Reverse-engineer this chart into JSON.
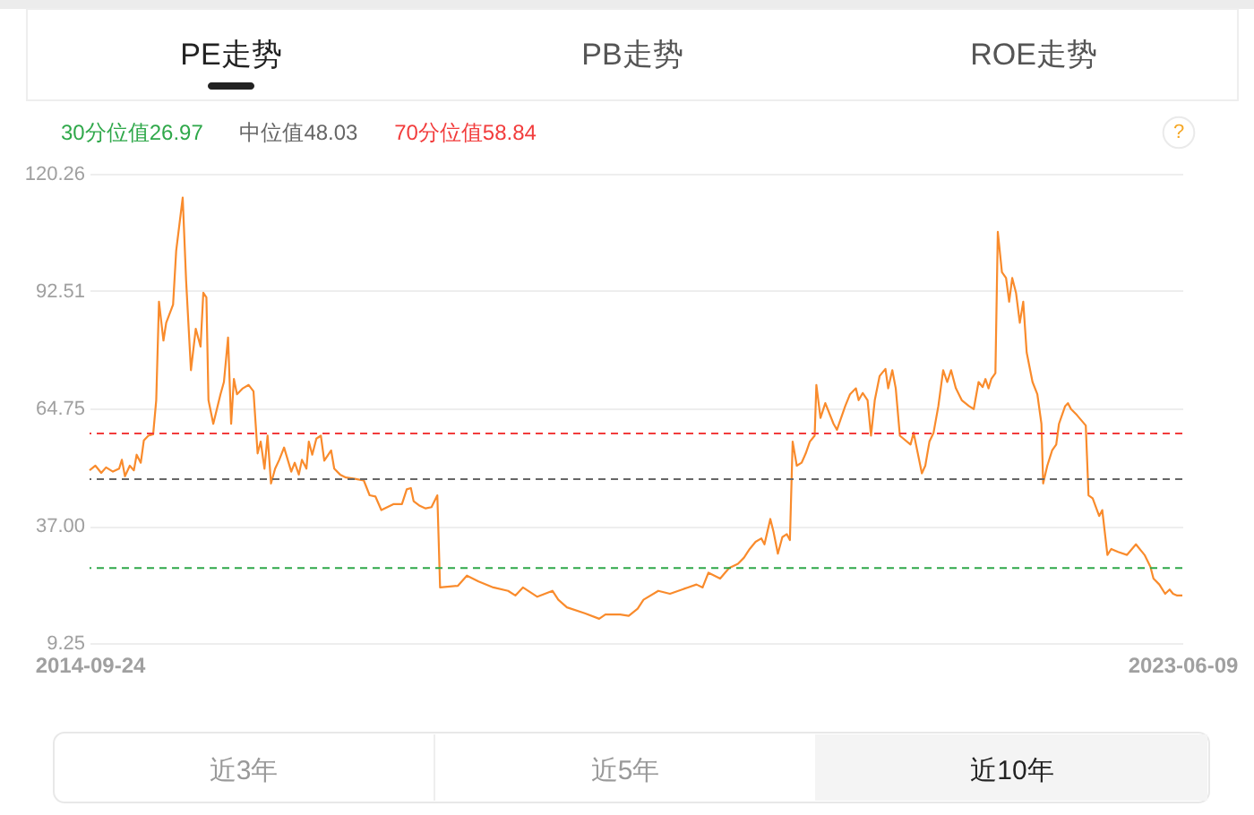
{
  "chart_data": {
    "type": "line",
    "annotations": [
      "PE走势",
      "PB走势",
      "ROE走势",
      "?",
      "近3年",
      "近5年",
      "近10年"
    ],
    "x": [
      "2014-09-24",
      "2014-10-11",
      "2014-10-28",
      "2014-11-11",
      "2014-12-01",
      "2014-12-19",
      "2014-12-27",
      "2015-01-05",
      "2015-01-19",
      "2015-01-31",
      "2015-02-08",
      "2015-02-20",
      "2015-03-01",
      "2015-03-14",
      "2015-03-28",
      "2015-04-06",
      "2015-04-14",
      "2015-04-27",
      "2015-05-05",
      "2015-05-25",
      "2015-06-03",
      "2015-06-22",
      "2015-07-02",
      "2015-07-16",
      "2015-07-30",
      "2015-08-13",
      "2015-08-21",
      "2015-08-30",
      "2015-09-05",
      "2015-09-19",
      "2015-10-10",
      "2015-10-20",
      "2015-11-01",
      "2015-11-10",
      "2015-11-18",
      "2015-11-27",
      "2015-12-14",
      "2015-12-31",
      "2016-01-14",
      "2016-01-26",
      "2016-02-04",
      "2016-02-15",
      "2016-02-24",
      "2016-03-05",
      "2016-03-17",
      "2016-03-29",
      "2016-04-12",
      "2016-05-03",
      "2016-05-13",
      "2016-05-25",
      "2016-06-03",
      "2016-06-16",
      "2016-06-23",
      "2016-07-03",
      "2016-07-15",
      "2016-07-28",
      "2016-08-07",
      "2016-08-27",
      "2016-09-05",
      "2016-09-22",
      "2016-10-09",
      "2016-11-04",
      "2016-11-30",
      "2016-12-17",
      "2017-01-03",
      "2017-01-20",
      "2017-02-24",
      "2017-03-21",
      "2017-04-04",
      "2017-04-16",
      "2017-04-24",
      "2017-05-12",
      "2017-05-29",
      "2017-06-15",
      "2017-07-02",
      "2017-07-10",
      "2017-08-31",
      "2017-09-26",
      "2017-10-30",
      "2017-12-12",
      "2018-01-24",
      "2018-02-14",
      "2018-03-08",
      "2018-04-19",
      "2018-06-02",
      "2018-06-19",
      "2018-07-14",
      "2018-09-04",
      "2018-10-16",
      "2018-11-03",
      "2018-12-16",
      "2019-01-10",
      "2019-02-05",
      "2019-02-22",
      "2019-04-06",
      "2019-05-10",
      "2019-07-01",
      "2019-07-26",
      "2019-08-13",
      "2019-08-30",
      "2019-10-03",
      "2019-10-29",
      "2019-11-24",
      "2019-12-11",
      "2019-12-28",
      "2020-01-14",
      "2020-01-31",
      "2020-02-09",
      "2020-02-26",
      "2020-03-06",
      "2020-03-19",
      "2020-04-01",
      "2020-04-14",
      "2020-04-23",
      "2020-05-01",
      "2020-05-13",
      "2020-05-27",
      "2020-06-08",
      "2020-06-20",
      "2020-07-04",
      "2020-07-09",
      "2020-07-21",
      "2020-08-04",
      "2020-08-28",
      "2020-09-07",
      "2020-10-01",
      "2020-10-15",
      "2020-11-01",
      "2020-11-09",
      "2020-11-21",
      "2020-12-05",
      "2020-12-15",
      "2020-12-26",
      "2021-01-09",
      "2021-01-26",
      "2021-02-03",
      "2021-02-15",
      "2021-02-25",
      "2021-03-09",
      "2021-04-09",
      "2021-04-18",
      "2021-05-12",
      "2021-05-22",
      "2021-06-03",
      "2021-06-15",
      "2021-06-29",
      "2021-07-13",
      "2021-07-25",
      "2021-08-05",
      "2021-08-19",
      "2021-09-05",
      "2021-09-26",
      "2021-10-10",
      "2021-10-24",
      "2021-11-05",
      "2021-11-13",
      "2021-11-22",
      "2021-11-30",
      "2021-12-12",
      "2021-12-19",
      "2021-12-31",
      "2022-01-12",
      "2022-01-21",
      "2022-01-30",
      "2022-02-10",
      "2022-02-21",
      "2022-03-03",
      "2022-03-13",
      "2022-03-30",
      "2022-04-13",
      "2022-04-25",
      "2022-04-30",
      "2022-05-12",
      "2022-05-26",
      "2022-06-07",
      "2022-06-15",
      "2022-07-03",
      "2022-07-11",
      "2022-07-20",
      "2022-08-06",
      "2022-09-01",
      "2022-09-09",
      "2022-09-21",
      "2022-10-10",
      "2022-10-19",
      "2022-10-26",
      "2022-11-03",
      "2022-11-14",
      "2022-12-04",
      "2022-12-30",
      "2023-01-25",
      "2023-02-19",
      "2023-03-08",
      "2023-03-17",
      "2023-04-03",
      "2023-04-20",
      "2023-05-03",
      "2023-05-13",
      "2023-05-25",
      "2023-06-09"
    ],
    "series": [
      {
        "color": "#f98b2c",
        "values": [
          50.1,
          51.2,
          49.5,
          50.8,
          49.8,
          50.5,
          52.6,
          48.7,
          51.2,
          50.1,
          53.8,
          51.9,
          57.2,
          58.3,
          58.6,
          66.7,
          90.0,
          80.8,
          85.0,
          89.3,
          102.0,
          114.6,
          94.9,
          73.8,
          83.6,
          79.4,
          92.1,
          91.0,
          66.7,
          61.1,
          68.1,
          71.0,
          81.5,
          61.1,
          71.7,
          68.1,
          69.5,
          70.3,
          68.8,
          54.1,
          56.9,
          50.5,
          58.3,
          47.0,
          50.5,
          52.6,
          55.5,
          49.8,
          51.9,
          49.1,
          52.6,
          50.5,
          56.9,
          53.8,
          57.6,
          58.3,
          52.4,
          54.8,
          50.5,
          49.1,
          48.4,
          48.1,
          47.7,
          44.2,
          43.9,
          40.7,
          42.1,
          42.1,
          45.6,
          45.9,
          42.8,
          41.7,
          41.1,
          41.4,
          44.2,
          22.4,
          22.8,
          25.2,
          23.8,
          22.4,
          21.6,
          20.5,
          22.4,
          20.2,
          21.6,
          19.5,
          17.7,
          16.3,
          15.0,
          16.0,
          16.0,
          15.7,
          17.4,
          19.5,
          21.6,
          20.9,
          22.4,
          23.1,
          22.4,
          25.9,
          24.5,
          27.0,
          28.0,
          29.4,
          31.5,
          33.2,
          34.0,
          32.6,
          38.6,
          35.7,
          30.4,
          34.3,
          35.0,
          33.6,
          56.9,
          51.2,
          51.9,
          54.1,
          56.9,
          58.3,
          70.3,
          62.5,
          66.0,
          61.1,
          59.7,
          65.3,
          68.1,
          69.5,
          66.7,
          68.4,
          66.7,
          58.3,
          66.7,
          72.4,
          74.1,
          69.5,
          73.8,
          69.5,
          58.3,
          56.2,
          59.0,
          49.4,
          51.2,
          56.9,
          59.0,
          65.3,
          73.8,
          71.0,
          73.8,
          69.5,
          66.7,
          65.3,
          64.6,
          71.0,
          69.8,
          71.7,
          69.5,
          71.7,
          73.1,
          106.5,
          97.0,
          95.6,
          90.0,
          95.6,
          92.1,
          85.0,
          90.0,
          78.0,
          71.0,
          68.1,
          61.1,
          47.0,
          51.2,
          54.8,
          56.2,
          61.1,
          65.3,
          66.0,
          64.6,
          63.2,
          60.7,
          44.2,
          43.5,
          39.3,
          40.7,
          35.7,
          30.1,
          31.5,
          30.8,
          30.1,
          32.6,
          30.1,
          27.3,
          24.5,
          23.1,
          20.9,
          21.9,
          20.9,
          20.5,
          20.5
        ]
      }
    ],
    "xlim": [
      "2014-09-24",
      "2023-06-09"
    ],
    "xticks": [
      "2014-09-24",
      "2023-06-09"
    ],
    "ylim": [
      9.25,
      120.26
    ],
    "yticks": [
      9.25,
      {
        "value": 37,
        "label": "37.00"
      },
      64.75,
      92.51,
      120.26
    ],
    "grid": "y",
    "ref_lines": [
      {
        "axis": "y",
        "value": 26.97,
        "label": "30分位值26.97",
        "color": "#2fa84a",
        "line_style": "dashed"
      },
      {
        "axis": "y",
        "value": 48.03,
        "label": "中位值48.03",
        "color": "#666666",
        "line_style": "dashed"
      },
      {
        "axis": "y",
        "value": 58.84,
        "label": "70分位值58.84",
        "color": "#f23c3c",
        "line_style": "dashed"
      }
    ]
  }
}
